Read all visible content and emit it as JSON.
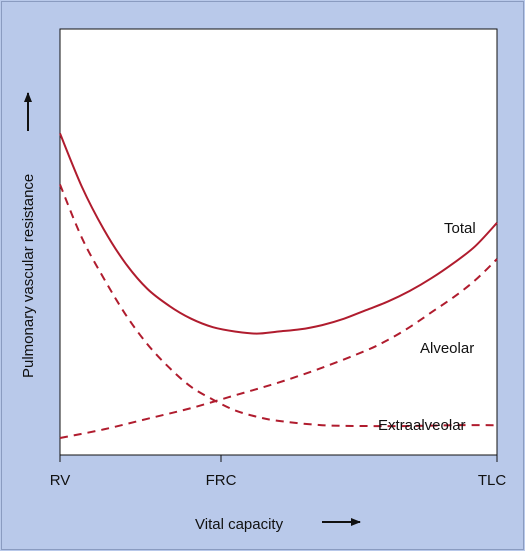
{
  "chart_data": {
    "type": "line",
    "title": "",
    "xlabel": "Vital capacity",
    "ylabel": "Pulmonary vascular resistance",
    "x_ticks": [
      "RV",
      "FRC",
      "TLC"
    ],
    "x_tick_values": [
      0,
      0.368,
      1
    ],
    "xlim": [
      0,
      1
    ],
    "ylim": [
      0,
      1
    ],
    "grid": false,
    "legend": "none",
    "colors": {
      "line": "#b01c2e",
      "background": "#b9c9ea",
      "plot": "#ffffff"
    },
    "series": [
      {
        "name": "Total",
        "style": "solid",
        "x": [
          0,
          0.05,
          0.1,
          0.15,
          0.2,
          0.25,
          0.3,
          0.35,
          0.4,
          0.45,
          0.5,
          0.55,
          0.6,
          0.65,
          0.7,
          0.75,
          0.8,
          0.85,
          0.9,
          0.95,
          1
        ],
        "y": [
          0.755,
          0.63,
          0.53,
          0.45,
          0.39,
          0.35,
          0.32,
          0.3,
          0.29,
          0.285,
          0.29,
          0.295,
          0.305,
          0.32,
          0.34,
          0.36,
          0.385,
          0.415,
          0.45,
          0.49,
          0.545
        ]
      },
      {
        "name": "Alveolar",
        "style": "dashed",
        "x": [
          0,
          0.1,
          0.2,
          0.3,
          0.4,
          0.5,
          0.6,
          0.7,
          0.75,
          0.8,
          0.85,
          0.9,
          0.95,
          1
        ],
        "y": [
          0.04,
          0.06,
          0.085,
          0.11,
          0.14,
          0.17,
          0.205,
          0.245,
          0.27,
          0.3,
          0.335,
          0.37,
          0.41,
          0.46
        ]
      },
      {
        "name": "Extraalveolar",
        "style": "dashed",
        "x": [
          0,
          0.05,
          0.1,
          0.15,
          0.2,
          0.25,
          0.3,
          0.35,
          0.4,
          0.45,
          0.5,
          0.6,
          0.7,
          0.8,
          0.9,
          1
        ],
        "y": [
          0.635,
          0.51,
          0.415,
          0.33,
          0.26,
          0.205,
          0.16,
          0.13,
          0.105,
          0.09,
          0.08,
          0.07,
          0.068,
          0.068,
          0.07,
          0.07
        ]
      }
    ],
    "annotations": {
      "total": "Total",
      "alveolar": "Alveolar",
      "extraalveolar": "Extraalveolar"
    }
  }
}
